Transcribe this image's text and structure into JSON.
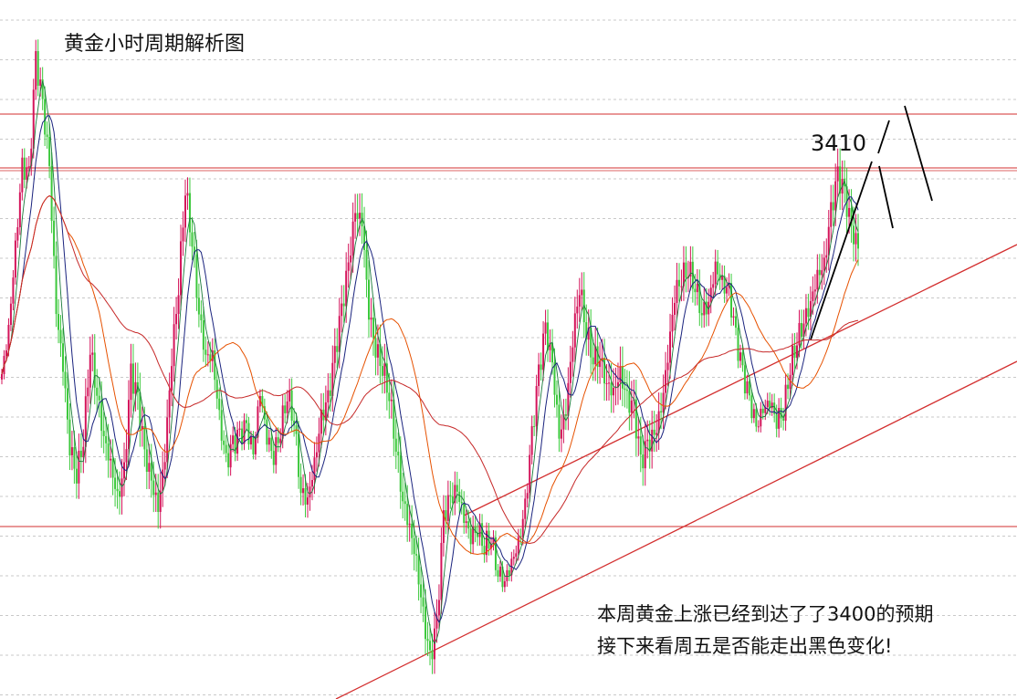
{
  "chart_data": {
    "type": "candlestick",
    "title": "黄金小时周期解析图",
    "price_label": "3410",
    "annotations": [
      "本周黄金上涨已经到达了了3400的预期",
      "接下来看周五是否能走出黑色变化!"
    ],
    "grid": "dashed-horizontal",
    "colors": {
      "up": "#d4145a",
      "down": "#3cc83c",
      "ma_fast": "#1a7a3a",
      "ma_mid": "#1a237e",
      "ma_slow": "#e65100",
      "ma_long": "#c62828",
      "levels": "#d32f2f",
      "projection": "#000000"
    },
    "levels": [
      3430,
      3400,
      3200
    ],
    "close": [
      3285,
      3310,
      3355,
      3400,
      3395,
      3460,
      3435,
      3400,
      3320,
      3290,
      3245,
      3230,
      3250,
      3300,
      3275,
      3250,
      3235,
      3215,
      3230,
      3285,
      3270,
      3240,
      3225,
      3210,
      3240,
      3295,
      3335,
      3390,
      3360,
      3320,
      3295,
      3295,
      3260,
      3235,
      3245,
      3250,
      3255,
      3240,
      3275,
      3250,
      3240,
      3255,
      3275,
      3260,
      3220,
      3215,
      3235,
      3260,
      3270,
      3295,
      3320,
      3345,
      3375,
      3370,
      3320,
      3300,
      3290,
      3275,
      3245,
      3215,
      3200,
      3180,
      3150,
      3125,
      3145,
      3205,
      3215,
      3220,
      3205,
      3195,
      3200,
      3190,
      3195,
      3175,
      3170,
      3180,
      3190,
      3210,
      3250,
      3285,
      3310,
      3290,
      3250,
      3265,
      3305,
      3335,
      3310,
      3295,
      3295,
      3280,
      3275,
      3285,
      3270,
      3265,
      3235,
      3245,
      3250,
      3265,
      3295,
      3330,
      3340,
      3345,
      3335,
      3320,
      3325,
      3345,
      3335,
      3330,
      3305,
      3285,
      3270,
      3255,
      3265,
      3270,
      3260,
      3265,
      3290,
      3305,
      3315,
      3325,
      3340,
      3345,
      3375,
      3395,
      3385,
      3365,
      3355
    ]
  }
}
